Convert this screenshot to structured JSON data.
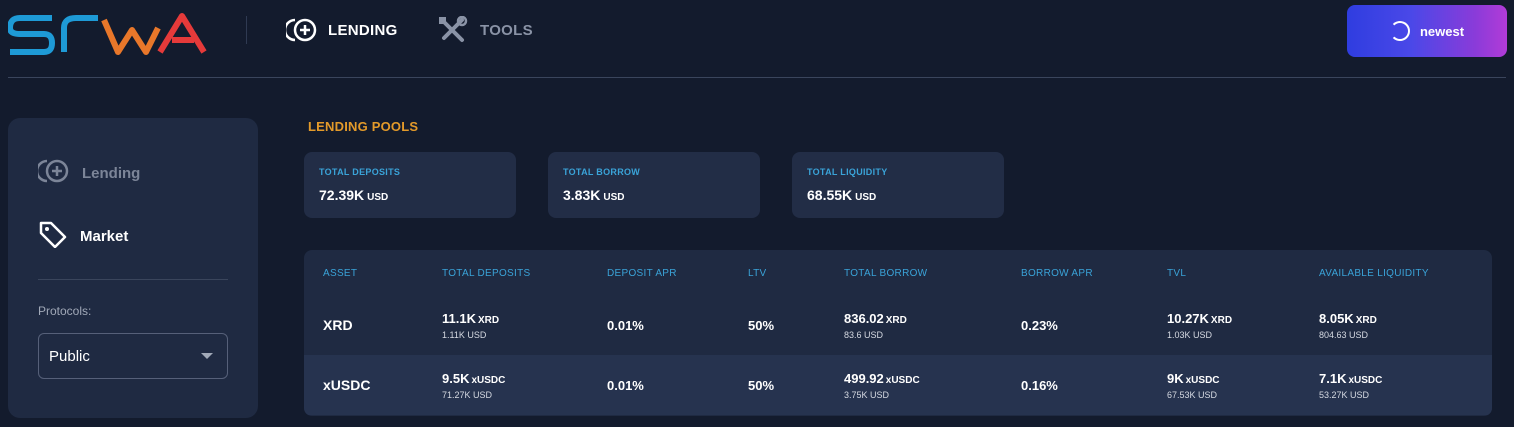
{
  "header": {
    "logo_text": "SRWA",
    "nav": [
      {
        "label": "LENDING",
        "icon": "plus-circle-icon"
      },
      {
        "label": "TOOLS",
        "icon": "tools-icon"
      }
    ],
    "newest_button": "newest"
  },
  "sidebar": {
    "items": [
      {
        "label": "Lending",
        "icon": "plus-circle-icon"
      },
      {
        "label": "Market",
        "icon": "tag-icon"
      }
    ],
    "protocols_label": "Protocols:",
    "protocol_selected": "Public"
  },
  "main": {
    "title": "LENDING POOLS",
    "stats": [
      {
        "label": "TOTAL DEPOSITS",
        "value": "72.39K",
        "unit": "USD"
      },
      {
        "label": "TOTAL BORROW",
        "value": "3.83K",
        "unit": "USD"
      },
      {
        "label": "TOTAL LIQUIDITY",
        "value": "68.55K",
        "unit": "USD"
      }
    ],
    "table": {
      "headers": [
        "ASSET",
        "TOTAL DEPOSITS",
        "DEPOSIT APR",
        "LTV",
        "TOTAL BORROW",
        "BORROW APR",
        "TVL",
        "AVAILABLE LIQUIDITY"
      ],
      "rows": [
        {
          "asset": "XRD",
          "total_deposits": {
            "value": "11.1K",
            "unit": "XRD",
            "usd": "1.11K USD"
          },
          "deposit_apr": "0.01%",
          "ltv": "50%",
          "total_borrow": {
            "value": "836.02",
            "unit": "XRD",
            "usd": "83.6 USD"
          },
          "borrow_apr": "0.23%",
          "tvl": {
            "value": "10.27K",
            "unit": "XRD",
            "usd": "1.03K USD"
          },
          "available_liquidity": {
            "value": "8.05K",
            "unit": "XRD",
            "usd": "804.63 USD"
          }
        },
        {
          "asset": "xUSDC",
          "total_deposits": {
            "value": "9.5K",
            "unit": "xUSDC",
            "usd": "71.27K USD"
          },
          "deposit_apr": "0.01%",
          "ltv": "50%",
          "total_borrow": {
            "value": "499.92",
            "unit": "xUSDC",
            "usd": "3.75K USD"
          },
          "borrow_apr": "0.16%",
          "tvl": {
            "value": "9K",
            "unit": "xUSDC",
            "usd": "67.53K USD"
          },
          "available_liquidity": {
            "value": "7.1K",
            "unit": "xUSDC",
            "usd": "53.27K USD"
          }
        }
      ]
    }
  },
  "colors": {
    "background": "#131b2d",
    "panel": "#1f2a42",
    "accent_orange": "#e39a2a",
    "accent_blue": "#3aa3d8"
  }
}
